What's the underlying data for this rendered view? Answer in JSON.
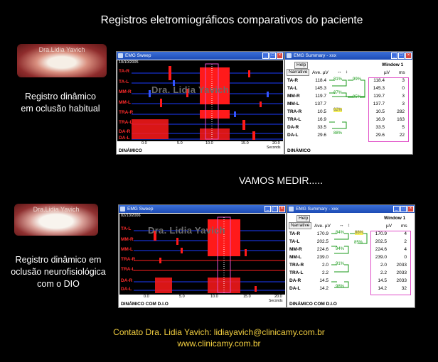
{
  "title": "Registros eletromiográficos comparativos do paciente",
  "photo_watermark": "Dra.Lidia Yavich",
  "middle_text": "VAMOS MEDIR.....",
  "contact_line1": "Contato  Dra. Lidia Yavich:  lidiayavich@clinicamy.com.br",
  "contact_line2": "www.clinicamy.com.br",
  "top": {
    "side_label_1": "Registro dinâmico",
    "side_label_2": "em oclusão habitual",
    "sweep_title": "EMG Sweep",
    "sweep_date": "10/10/2005",
    "watermark": "Dra. Lidia Yavich",
    "channels": [
      "TA-R",
      "TA-L",
      "MM-R",
      "MM-L",
      "TRA-R",
      "TRA-L",
      "DA-R",
      "DA-L"
    ],
    "axis_ticks": [
      "0.0",
      "5.0",
      "10.0",
      "15.0",
      "20.0"
    ],
    "axis_unit": "Seconds",
    "mode_label": "DINÁMICO",
    "summary_title": "EMG Summary - xxx",
    "help": "Help",
    "narrative": "Narrative",
    "ave_label": "Ave. µV",
    "window_label": "Window 1",
    "uv_label": "µV",
    "ms_label": "ms",
    "rows": [
      {
        "name": "TA-R",
        "ave": "118.4",
        "uv": "118.4",
        "ms": "3"
      },
      {
        "name": "TA-L",
        "ave": "145.3",
        "uv": "145.3",
        "ms": "0"
      },
      {
        "name": "MM-R",
        "ave": "119.7",
        "uv": "119.7",
        "ms": "3"
      },
      {
        "name": "MM-L",
        "ave": "137.7",
        "uv": "137.7",
        "ms": "3"
      },
      {
        "name": "TRA-R",
        "ave": "10.5",
        "uv": "10.5",
        "ms": "282"
      },
      {
        "name": "TRA-L",
        "ave": "16.9",
        "uv": "16.9",
        "ms": "163"
      },
      {
        "name": "DA-R",
        "ave": "33.5",
        "uv": "33.5",
        "ms": "5"
      },
      {
        "name": "DA-L",
        "ave": "29.6",
        "uv": "29.6",
        "ms": "22"
      }
    ],
    "pcts": [
      "81%",
      "99%",
      "87%",
      "95%",
      "88%"
    ],
    "pct_yellow": "62%"
  },
  "bottom": {
    "side_label_1": "Registro dinâmico em",
    "side_label_2": "oclusão neurofisiológica",
    "side_label_3": "com o DIO",
    "sweep_title": "EMG Sweep",
    "sweep_date": "02/10/2006",
    "watermark": "Dra. Lidia Yavich",
    "channels": [
      "TA-L",
      "MM-R",
      "MM-L",
      "TRA-R",
      "TRA-L",
      "DA-R",
      "DA-L"
    ],
    "axis_ticks": [
      "0.0",
      "5.0",
      "10.0",
      "15.0",
      "20.0"
    ],
    "axis_unit": "Seconds",
    "mode_label": "DINÁMICO COM D.I.O",
    "summary_title": "EMG Summary - xxx",
    "help": "Help",
    "narrative": "Narrative",
    "ave_label": "Ave. µV",
    "window_label": "Window 1",
    "uv_label": "µV",
    "ms_label": "ms",
    "rows": [
      {
        "name": "TA-R",
        "ave": "170.9",
        "uv": "170.9",
        "ms": "4"
      },
      {
        "name": "TA-L",
        "ave": "202.5",
        "uv": "202.5",
        "ms": "2"
      },
      {
        "name": "MM-R",
        "ave": "224.6",
        "uv": "224.6",
        "ms": "4"
      },
      {
        "name": "MM-L",
        "ave": "239.0",
        "uv": "239.0",
        "ms": "0"
      },
      {
        "name": "TRA-R",
        "ave": "2.0",
        "uv": "2.0",
        "ms": "2033"
      },
      {
        "name": "TRA-L",
        "ave": "2.2",
        "uv": "2.2",
        "ms": "2033"
      },
      {
        "name": "DA-R",
        "ave": "14.5",
        "uv": "14.5",
        "ms": "2033"
      },
      {
        "name": "DA-L",
        "ave": "14.2",
        "uv": "14.2",
        "ms": "32"
      }
    ],
    "pcts": [
      "84%",
      "94%",
      "91%",
      "98%"
    ],
    "pct_yellow": "88%",
    "pct_far": "85%"
  }
}
